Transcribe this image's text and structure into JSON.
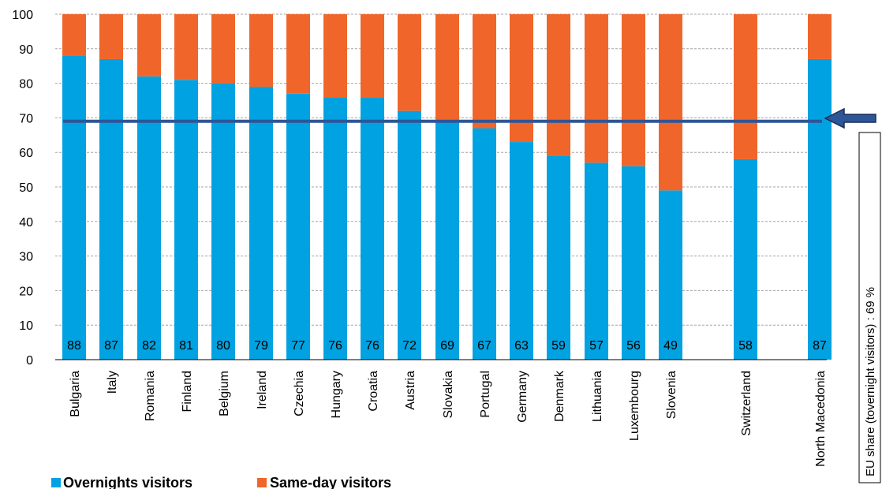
{
  "chart_data": {
    "type": "bar",
    "stacked": true,
    "categories": [
      "Bulgaria",
      "Italy",
      "Romania",
      "Finland",
      "Belgium",
      "Ireland",
      "Czechia",
      "Hungary",
      "Croatia",
      "Austria",
      "Slovakia",
      "Portugal",
      "Germany",
      "Denmark",
      "Lithuania",
      "Luxembourg",
      "Slovenia",
      "Switzerland",
      "North Macedonia"
    ],
    "series": [
      {
        "name": "Overnights visitors",
        "color": "#00a2e1",
        "values": [
          88,
          87,
          82,
          81,
          80,
          79,
          77,
          76,
          76,
          72,
          69,
          67,
          63,
          59,
          57,
          56,
          49,
          58,
          87
        ]
      },
      {
        "name": "Same-day visitors",
        "color": "#f0662a",
        "values": [
          12,
          13,
          18,
          19,
          20,
          21,
          23,
          24,
          24,
          28,
          31,
          33,
          37,
          41,
          43,
          44,
          51,
          42,
          13
        ]
      }
    ],
    "data_labels": [
      "88",
      "87",
      "82",
      "81",
      "80",
      "79",
      "77",
      "76",
      "76",
      "72",
      "69",
      "67",
      "63",
      "59",
      "57",
      "56",
      "49",
      "58",
      "87"
    ],
    "ylim": [
      0,
      100
    ],
    "yticks": [
      "0",
      "10",
      "20",
      "30",
      "40",
      "50",
      "60",
      "70",
      "80",
      "90",
      "100"
    ],
    "grid": true,
    "reference_line": {
      "value": 69,
      "color": "#2e5597"
    },
    "annotation": "EU share (tovernight visitors) :  69 %",
    "legend": {
      "position": "bottom-left",
      "items": [
        "Overnights visitors",
        "Same-day visitors"
      ]
    }
  }
}
